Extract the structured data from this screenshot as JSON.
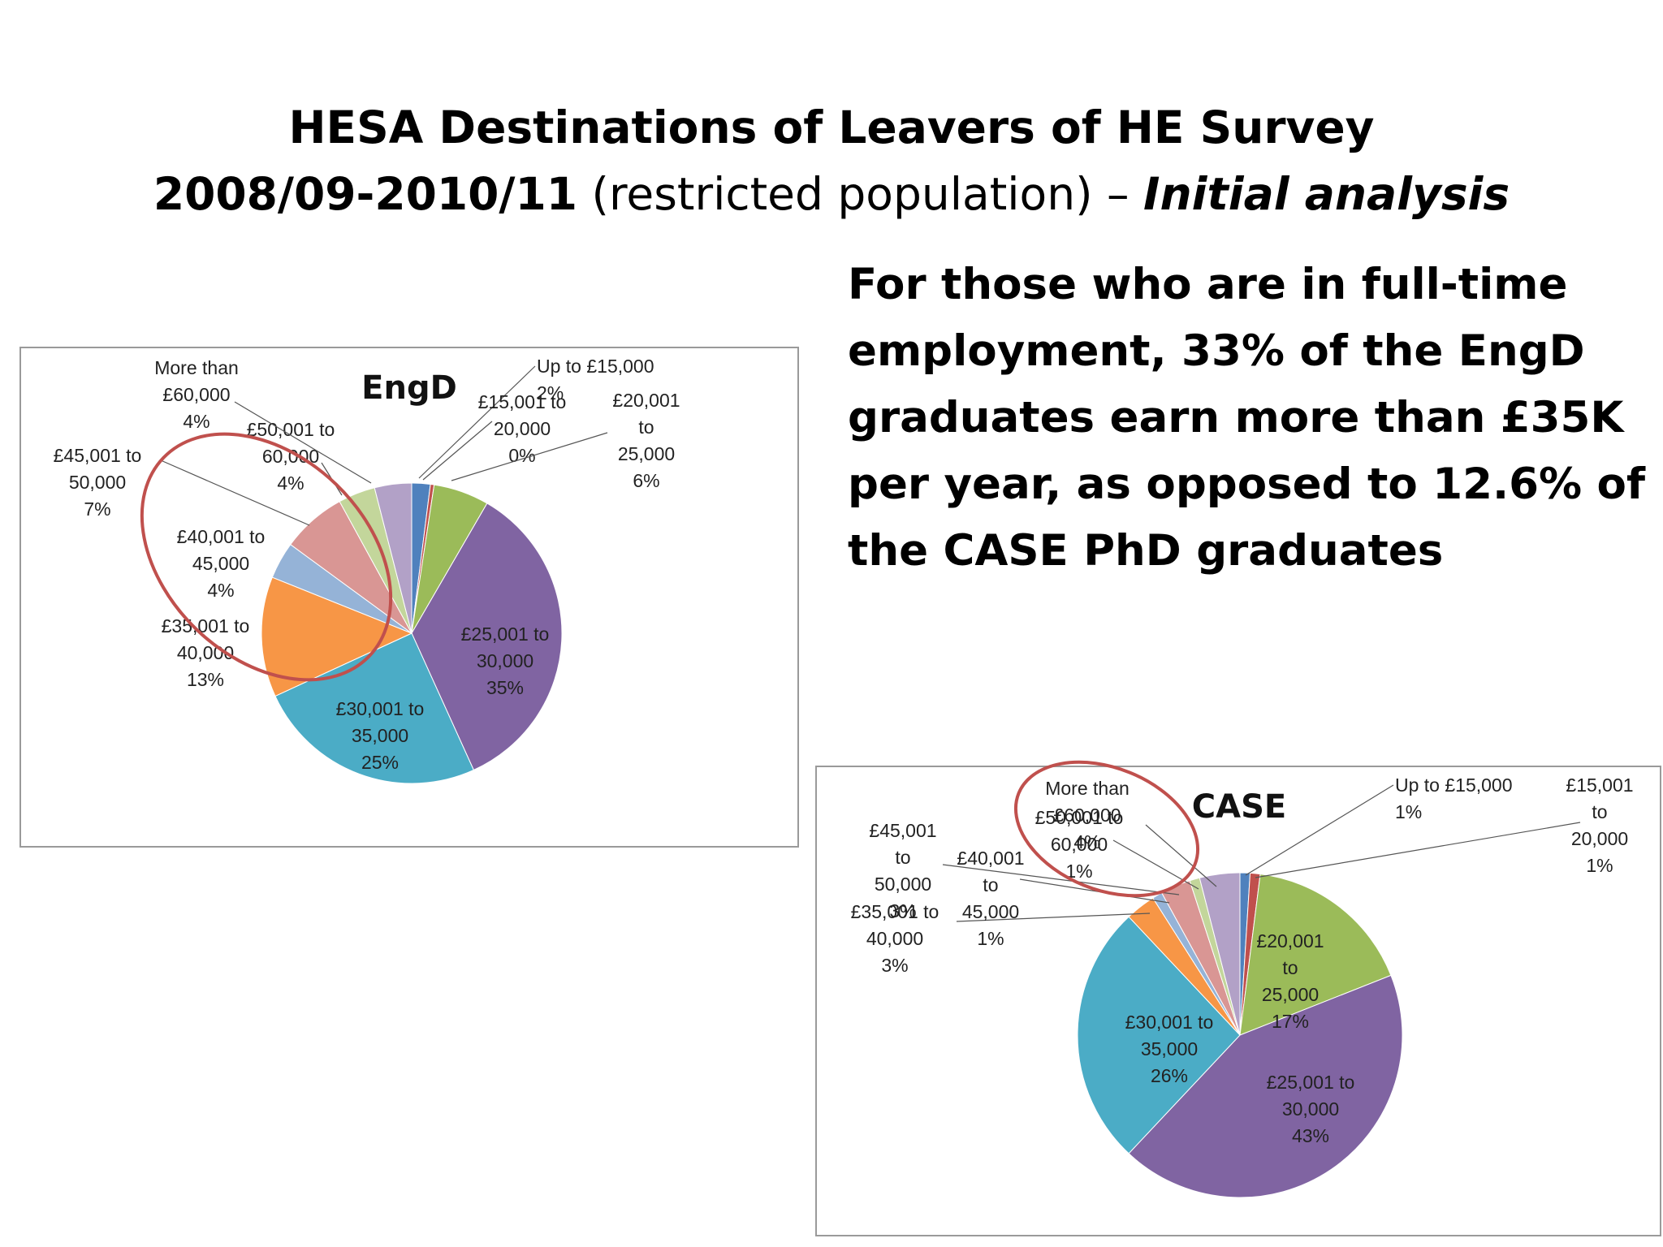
{
  "slide": {
    "title_line1": "HESA Destinations of Leavers of HE Survey",
    "title_line2_bold": "2008/09-2010/11",
    "title_line2_plain": " (restricted population) – ",
    "title_line2_italic": "Initial analysis",
    "body": "For those who are in full-time employment, 33% of the EngD graduates earn more than £35K per year, as opposed to 12.6% of the CASE PhD graduates",
    "highlight_color": "#c0504d"
  },
  "chart_data": [
    {
      "type": "pie",
      "title": "EngD",
      "slices": [
        {
          "label": [
            "Up to £15,000",
            "2%"
          ],
          "value": 2,
          "color": "#4f81bd"
        },
        {
          "label": [
            "£15,001 to",
            "20,000",
            "0%"
          ],
          "value": 0.4,
          "color": "#c0504d"
        },
        {
          "label": [
            "£20,001",
            "to",
            "25,000",
            "6%"
          ],
          "value": 6,
          "color": "#9bbb59"
        },
        {
          "label": [
            "£25,001 to",
            "30,000",
            "35%"
          ],
          "value": 35,
          "color": "#8064a2"
        },
        {
          "label": [
            "£30,001 to",
            "35,000",
            "25%"
          ],
          "value": 25,
          "color": "#4bacc6"
        },
        {
          "label": [
            "£35,001 to",
            "40,000",
            "13%"
          ],
          "value": 13,
          "color": "#f79646"
        },
        {
          "label": [
            "£40,001 to",
            "45,000",
            "4%"
          ],
          "value": 4,
          "color": "#95b3d7"
        },
        {
          "label": [
            "£45,001 to",
            "50,000",
            "7%"
          ],
          "value": 7,
          "color": "#d99694"
        },
        {
          "label": [
            "£50,001 to",
            "60,000",
            "4%"
          ],
          "value": 4,
          "color": "#c3d69b"
        },
        {
          "label": [
            "More than",
            "£60,000",
            "4%"
          ],
          "value": 4,
          "color": "#b2a1c7"
        }
      ]
    },
    {
      "type": "pie",
      "title": "CASE",
      "slices": [
        {
          "label": [
            "Up to £15,000",
            "1%"
          ],
          "value": 1,
          "color": "#4f81bd"
        },
        {
          "label": [
            "£15,001",
            "to",
            "20,000",
            "1%"
          ],
          "value": 1,
          "color": "#c0504d"
        },
        {
          "label": [
            "£20,001",
            "to",
            "25,000",
            "17%"
          ],
          "value": 17,
          "color": "#9bbb59"
        },
        {
          "label": [
            "£25,001 to",
            "30,000",
            "43%"
          ],
          "value": 43,
          "color": "#8064a2"
        },
        {
          "label": [
            "£30,001 to",
            "35,000",
            "26%"
          ],
          "value": 26,
          "color": "#4bacc6"
        },
        {
          "label": [
            "£35,001 to",
            "40,000",
            "3%"
          ],
          "value": 3,
          "color": "#f79646"
        },
        {
          "label": [
            "£40,001",
            "to",
            "45,000",
            "1%"
          ],
          "value": 1,
          "color": "#95b3d7"
        },
        {
          "label": [
            "£45,001",
            "to",
            "50,000",
            "3%"
          ],
          "value": 3,
          "color": "#d99694"
        },
        {
          "label": [
            "£50,001 to",
            "60,000",
            "1%"
          ],
          "value": 1,
          "color": "#c3d69b"
        },
        {
          "label": [
            "More than",
            "£60,000",
            "4%"
          ],
          "value": 4,
          "color": "#b2a1c7"
        }
      ]
    }
  ]
}
